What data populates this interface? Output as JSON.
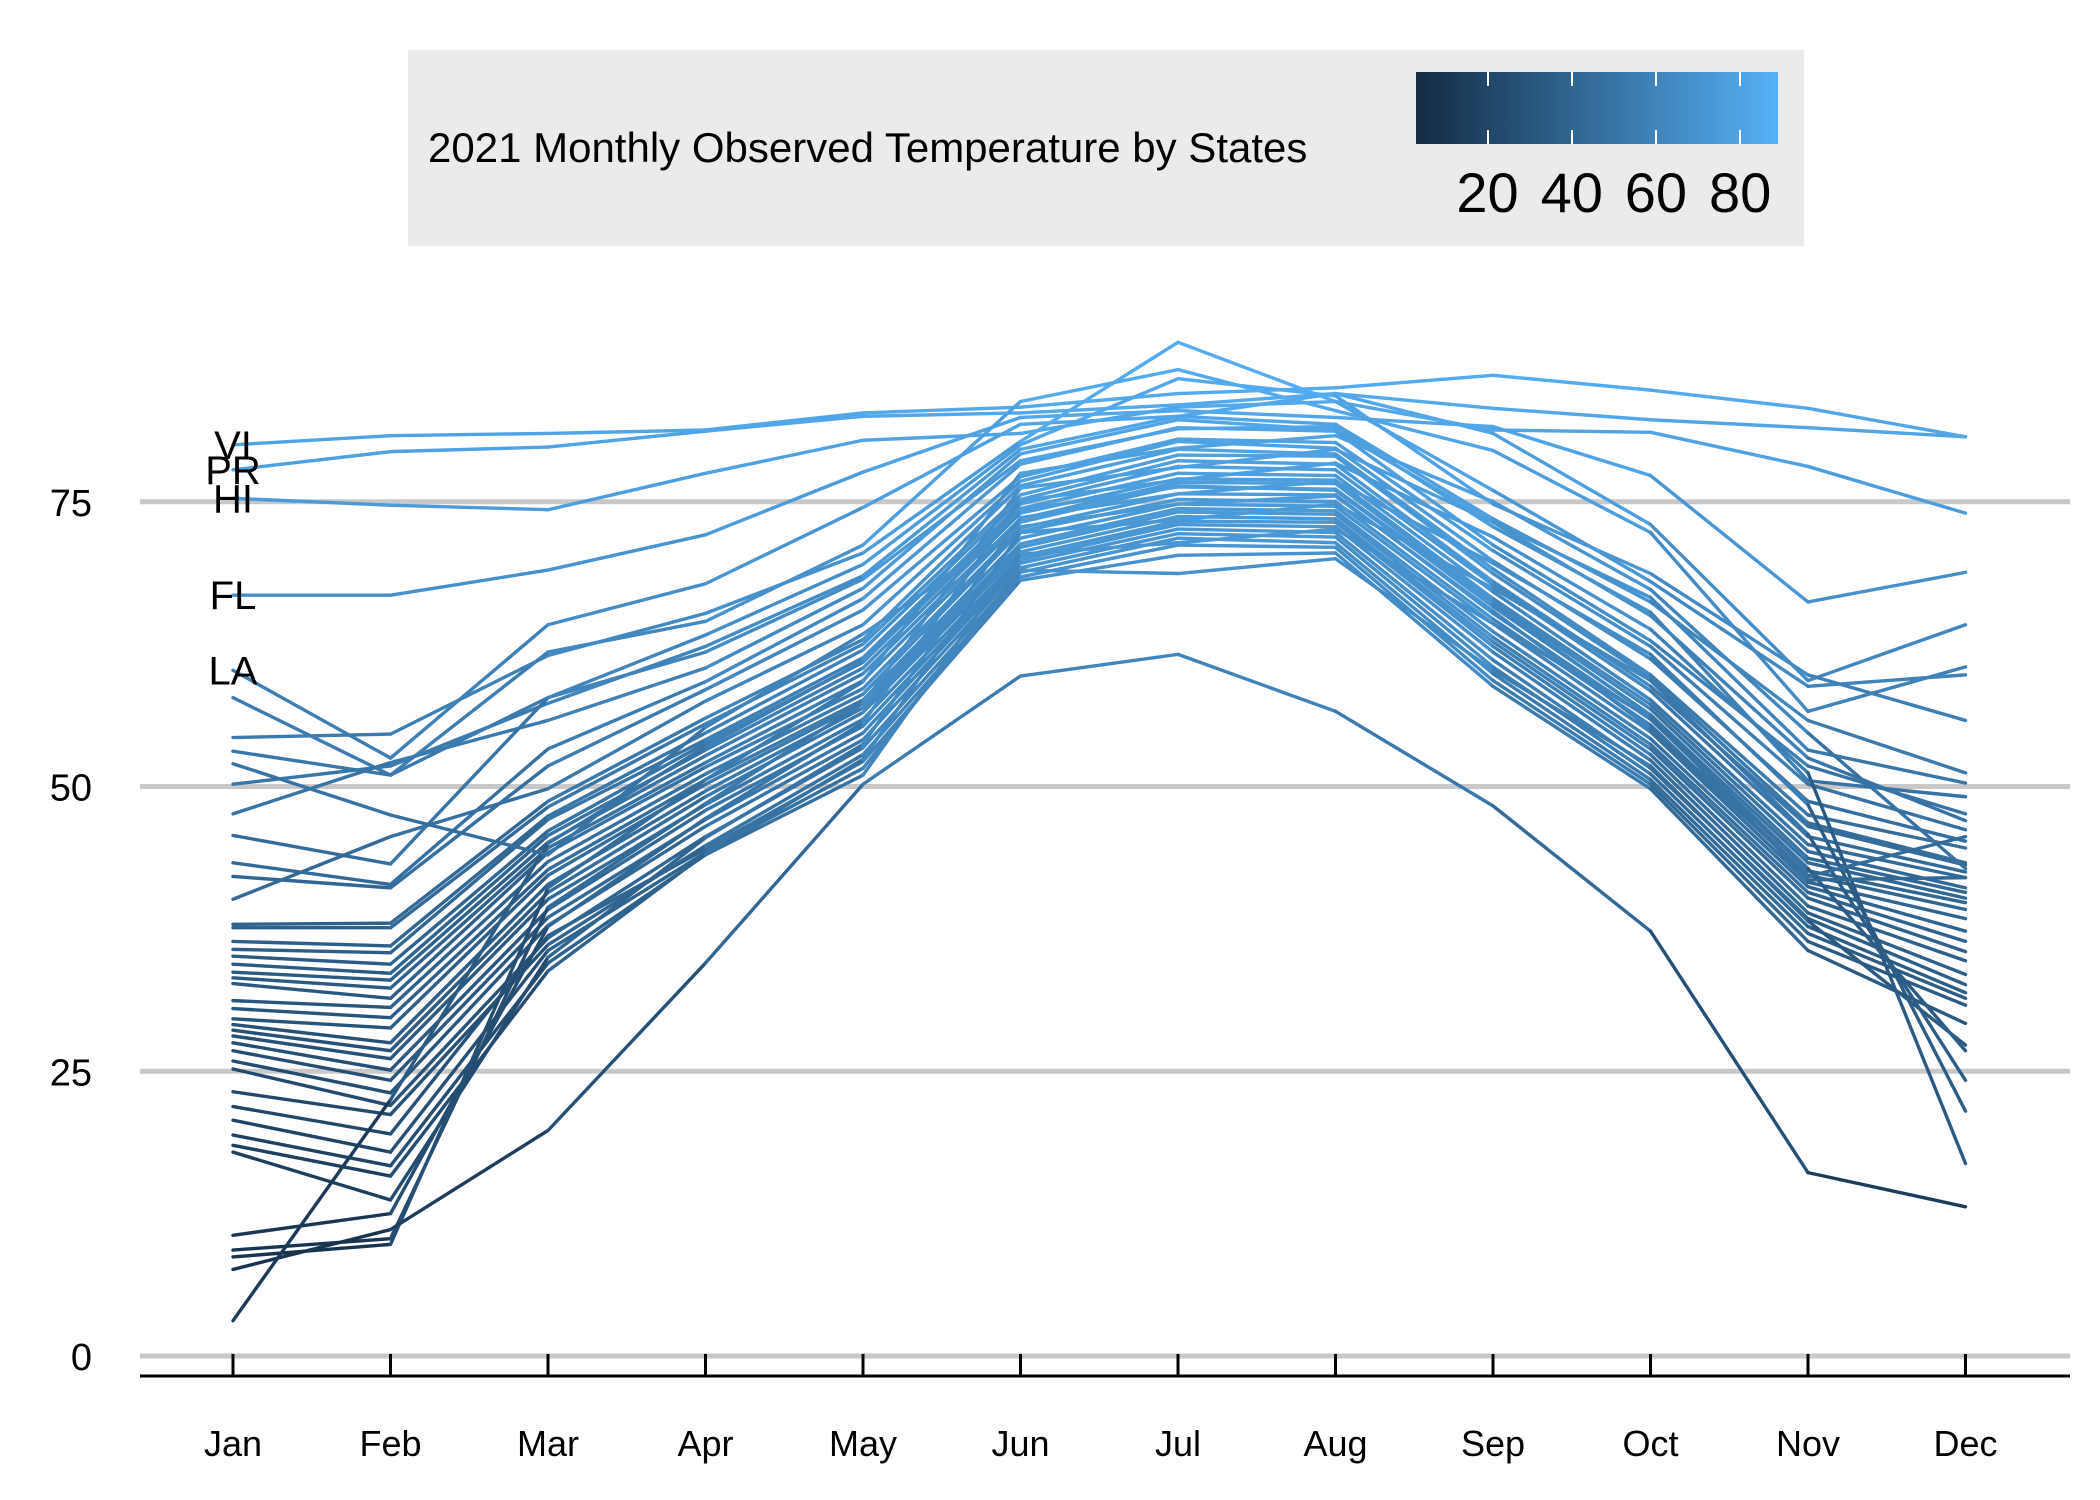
{
  "legend": {
    "title": "2021 Monthly Observed Temperature by States",
    "color_low": "#132b43",
    "color_high": "#56b1f7",
    "range": [
      3,
      89
    ],
    "ticks": [
      {
        "value": 20,
        "label": "20"
      },
      {
        "value": 40,
        "label": "40"
      },
      {
        "value": 60,
        "label": "60"
      },
      {
        "value": 80,
        "label": "80"
      }
    ]
  },
  "chart_data": {
    "type": "line",
    "title": "2021 Monthly Observed Temperature by States",
    "xlabel": "",
    "ylabel": "",
    "x": [
      "Jan",
      "Feb",
      "Mar",
      "Apr",
      "May",
      "Jun",
      "Jul",
      "Aug",
      "Sep",
      "Oct",
      "Nov",
      "Dec"
    ],
    "ylim": [
      -1.5,
      91
    ],
    "yticks": [
      0,
      25,
      50,
      75
    ],
    "grid": "horizontal",
    "legend_position": "top",
    "series": [
      {
        "name": "VI",
        "values": [
          80,
          80.8,
          81,
          81.3,
          82.8,
          83.3,
          84.5,
          85,
          86.1,
          84.8,
          83.2,
          80.7
        ]
      },
      {
        "name": "PR",
        "values": [
          77.8,
          79.4,
          79.8,
          81.2,
          82.5,
          82.8,
          83.5,
          84.5,
          83.2,
          82.2,
          81.5,
          80.7
        ]
      },
      {
        "name": "HI",
        "values": [
          75.3,
          74.7,
          74.3,
          77.5,
          80.4,
          81,
          83.3,
          83.8,
          81.3,
          81.1,
          78.1,
          74
        ]
      },
      {
        "name": "FL",
        "values": [
          66.8,
          66.8,
          69,
          72.1,
          77.6,
          82.4,
          83,
          82.4,
          81.6,
          77.3,
          66.2,
          68.8
        ]
      },
      {
        "name": "LA",
        "values": [
          60.2,
          52.5,
          64.2,
          67.8,
          74.5,
          81.8,
          82.5,
          84.5,
          81,
          73,
          59.3,
          64.2
        ]
      },
      {
        "name": "",
        "values": [
          57.8,
          51,
          61.8,
          64.5,
          71.2,
          83.8,
          86.6,
          83,
          79.5,
          72.3,
          56.6,
          60.5
        ]
      },
      {
        "name": "",
        "values": [
          54.3,
          54.6,
          61.5,
          65.2,
          70.5,
          80.3,
          89,
          83.8,
          76,
          68,
          58.8,
          59.8
        ]
      },
      {
        "name": "",
        "values": [
          53.1,
          51,
          57.8,
          63.3,
          69.5,
          80,
          85.8,
          84.3,
          74.8,
          68.7,
          59.8,
          55.8
        ]
      },
      {
        "name": "",
        "values": [
          50.2,
          51.8,
          57.3,
          62.3,
          68.5,
          79.6,
          82.5,
          81.8,
          73.5,
          66.2,
          55.8,
          51.2
        ]
      },
      {
        "name": "",
        "values": [
          47.6,
          52.1,
          55.8,
          60.4,
          67.4,
          79.2,
          82.2,
          81.3,
          73.2,
          66.6,
          53.2,
          50.3
        ]
      },
      {
        "name": "",
        "values": [
          45.7,
          43.2,
          57.8,
          61.8,
          68.2,
          78.6,
          81.4,
          81.6,
          72.8,
          65.3,
          50.5,
          49.1
        ]
      },
      {
        "name": "",
        "values": [
          43.3,
          41.4,
          53.3,
          59.2,
          66.5,
          78.3,
          81.5,
          81.2,
          71.2,
          62.8,
          51.8,
          47.6
        ]
      },
      {
        "name": "",
        "values": [
          42.1,
          41.1,
          51.8,
          58.5,
          65.5,
          77.2,
          80.5,
          80.2,
          70.7,
          62.3,
          50.2,
          46.2
        ]
      },
      {
        "name": "",
        "values": [
          40.1,
          45.6,
          49.8,
          57.5,
          64.2,
          76.8,
          80.3,
          79.7,
          69.8,
          61.2,
          48.7,
          45.2
        ]
      },
      {
        "name": "",
        "values": [
          37.9,
          38,
          48.7,
          56,
          62.9,
          76.4,
          79.6,
          79.2,
          69.1,
          59.8,
          47.5,
          44.6
        ]
      },
      {
        "name": "",
        "values": [
          37.6,
          37.6,
          48.2,
          55.5,
          62.5,
          75.6,
          79.1,
          79,
          68.7,
          59.5,
          46.8,
          43.3
        ]
      },
      {
        "name": "",
        "values": [
          36.4,
          36,
          47.4,
          54.7,
          62,
          75.2,
          78.6,
          78.3,
          68,
          58.8,
          46.5,
          43.1
        ]
      },
      {
        "name": "",
        "values": [
          35.7,
          35.4,
          47.1,
          54.1,
          61.3,
          74.8,
          78.1,
          77.8,
          67.7,
          58.4,
          45.6,
          42.5
        ]
      },
      {
        "name": "",
        "values": [
          35.1,
          34.4,
          46.1,
          53.8,
          60.9,
          74.4,
          77.5,
          77.3,
          67.1,
          57.6,
          44.9,
          42
        ]
      },
      {
        "name": "",
        "values": [
          34.4,
          33.6,
          45.7,
          53.2,
          60.4,
          74,
          77,
          76.9,
          66.5,
          57.2,
          44.3,
          41.1
        ]
      },
      {
        "name": "",
        "values": [
          33.7,
          33,
          45.1,
          52.7,
          59.9,
          73.5,
          76.7,
          76.6,
          66.2,
          56.8,
          43.7,
          40.7
        ]
      },
      {
        "name": "",
        "values": [
          33.2,
          32.3,
          44.6,
          52.1,
          59.3,
          73.2,
          76.4,
          76,
          65.8,
          56.3,
          43.3,
          40.2
        ]
      },
      {
        "name": "",
        "values": [
          32.7,
          31.4,
          44.2,
          51.7,
          58.6,
          72.7,
          75.7,
          75.6,
          65.2,
          55.9,
          42.6,
          39.8
        ]
      },
      {
        "name": "",
        "values": [
          31.2,
          30.6,
          43.4,
          51.1,
          58.1,
          72.4,
          75.2,
          75,
          64.7,
          55.4,
          42.2,
          39.2
        ]
      },
      {
        "name": "",
        "values": [
          30.5,
          29.7,
          42.7,
          50.6,
          57.6,
          71.8,
          74.8,
          74.6,
          64.3,
          54.8,
          41.6,
          38.4
        ]
      },
      {
        "name": "",
        "values": [
          29.6,
          28.8,
          42.2,
          50.2,
          57.3,
          71.3,
          74.4,
          74.2,
          63.6,
          54.2,
          41.2,
          37.3
        ]
      },
      {
        "name": "",
        "values": [
          29.1,
          27.5,
          41.4,
          49.6,
          56.9,
          71,
          74.1,
          73.9,
          63.1,
          53.7,
          40.7,
          36.4
        ]
      },
      {
        "name": "",
        "values": [
          28.6,
          26.8,
          40.7,
          49.1,
          56.5,
          70.6,
          73.7,
          73.5,
          62.7,
          53.3,
          40.2,
          35.5
        ]
      },
      {
        "name": "",
        "values": [
          28.1,
          26.1,
          40.1,
          48.4,
          55.9,
          70.2,
          73.3,
          73.2,
          62.3,
          52.8,
          39.5,
          34.7
        ]
      },
      {
        "name": "",
        "values": [
          27.5,
          25.1,
          39.2,
          47.9,
          55.3,
          69.9,
          73,
          72.8,
          61.8,
          52.3,
          38.9,
          33.5
        ]
      },
      {
        "name": "",
        "values": [
          26.8,
          24.2,
          38.5,
          47.1,
          54.7,
          69.6,
          72.6,
          72.3,
          61.1,
          51.6,
          38.4,
          32.6
        ]
      },
      {
        "name": "",
        "values": [
          25.9,
          23.1,
          37.8,
          46.5,
          54.1,
          69.2,
          72.2,
          71.9,
          60.5,
          51.1,
          37.7,
          31.9
        ]
      },
      {
        "name": "",
        "values": [
          25.2,
          22,
          36.7,
          45.6,
          53.4,
          68.8,
          71.8,
          71.4,
          59.9,
          50.6,
          37.1,
          31.4
        ]
      },
      {
        "name": "",
        "values": [
          23.2,
          21.2,
          36.1,
          44.8,
          52.8,
          68.4,
          71.2,
          71,
          59.3,
          50.2,
          36.4,
          30.8
        ]
      },
      {
        "name": "",
        "values": [
          21.9,
          19.5,
          36.9,
          44.5,
          52.2,
          68.1,
          70.3,
          70.5,
          58.8,
          49.8,
          35.6,
          29.2
        ]
      },
      {
        "name": "",
        "values": [
          20.7,
          17.9,
          35.6,
          44.2,
          51.6,
          69,
          68.7,
          70,
          60.2,
          51.8,
          38.2,
          27.3
        ]
      },
      {
        "name": "",
        "values": [
          19.4,
          16.7,
          34.5,
          44,
          51,
          70.4,
          71.4,
          72.6,
          64.3,
          56,
          42.8,
          26.8
        ]
      },
      {
        "name": "",
        "values": [
          18.5,
          15.8,
          33.8,
          44.1,
          52.4,
          72.3,
          73.4,
          74.8,
          67.4,
          59.3,
          45.8,
          24.2
        ]
      },
      {
        "name": "",
        "values": [
          17.9,
          13.7,
          35,
          45.5,
          53.7,
          73.6,
          75.7,
          76.8,
          69.6,
          61.6,
          48.4,
          21.5
        ]
      },
      {
        "name": "",
        "values": [
          10.6,
          12.5,
          37.7,
          47.2,
          55.6,
          75.1,
          76.9,
          78.4,
          71.9,
          63.8,
          51.2,
          16.9
        ]
      },
      {
        "name": "",
        "values": [
          9.3,
          10.3,
          39.4,
          48.5,
          57.3,
          76.2,
          78,
          79.6,
          73.2,
          65,
          52.5,
          47
        ]
      },
      {
        "name": "",
        "values": [
          8.7,
          9.8,
          41.1,
          50.6,
          59.2,
          77.5,
          79.7,
          80.8,
          75,
          67.3,
          54.7,
          42.8
        ]
      },
      {
        "name": "",
        "values": [
          7.6,
          11.1,
          19.8,
          34.5,
          50.2,
          59.7,
          61.6,
          56.6,
          48.3,
          37.3,
          16.1,
          13.1
        ]
      },
      {
        "name": "",
        "values": [
          3.1,
          22.5,
          45,
          53.5,
          61,
          74.3,
          76.3,
          76.1,
          66,
          56.2,
          41.8,
          42
        ]
      },
      {
        "name": "",
        "values": [
          52,
          47.5,
          44,
          55.2,
          63.4,
          72.8,
          74.8,
          75.5,
          65.4,
          55.1,
          42.1,
          45.6
        ]
      }
    ],
    "annotations": [
      "VI",
      "PR",
      "HI",
      "FL",
      "LA"
    ]
  }
}
